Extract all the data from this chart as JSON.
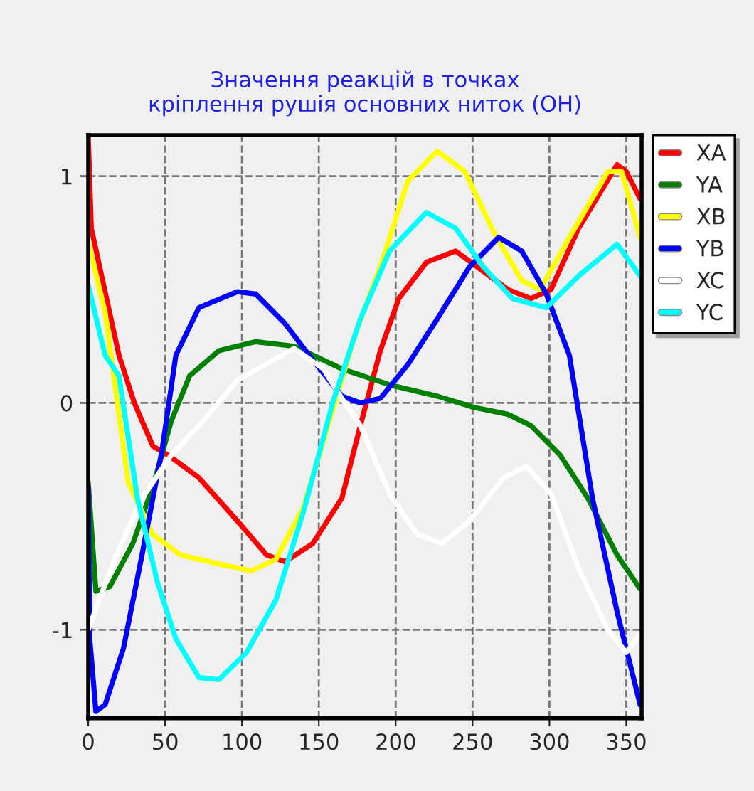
{
  "chart_data": {
    "type": "line",
    "title": "Значення реакцій в точках\nкріплення рушія основних ниток (ОН)",
    "xlim": [
      0,
      360
    ],
    "ylim": [
      -1.39,
      1.18
    ],
    "xticks": [
      0,
      50,
      100,
      150,
      200,
      250,
      300,
      350
    ],
    "yticks": [
      -1,
      0,
      1
    ],
    "grid": true,
    "legend": "top right",
    "marker": "none",
    "line_style": "solid",
    "series": [
      {
        "name": "XA",
        "color": "#ff0000",
        "x": [
          0,
          2,
          10,
          20,
          30,
          42,
          52,
          72,
          97,
          116,
          128,
          146,
          165,
          177,
          190,
          202,
          220,
          239,
          257,
          273,
          288,
          301,
          319,
          344,
          350,
          359
        ],
        "values": [
          1.18,
          0.77,
          0.52,
          0.21,
          0.0,
          -0.19,
          -0.23,
          -0.33,
          -0.52,
          -0.67,
          -0.7,
          -0.62,
          -0.42,
          -0.1,
          0.23,
          0.46,
          0.62,
          0.67,
          0.58,
          0.5,
          0.46,
          0.5,
          0.77,
          1.05,
          1.02,
          0.9
        ]
      },
      {
        "name": "YA",
        "color": "#008000",
        "x": [
          0,
          5,
          14,
          29,
          42,
          54,
          66,
          85,
          109,
          134,
          165,
          196,
          227,
          251,
          273,
          288,
          307,
          325,
          344,
          359
        ],
        "values": [
          -0.35,
          -0.83,
          -0.81,
          -0.62,
          -0.37,
          -0.08,
          0.12,
          0.23,
          0.27,
          0.25,
          0.15,
          0.08,
          0.03,
          -0.02,
          -0.05,
          -0.1,
          -0.23,
          -0.42,
          -0.67,
          -0.82
        ]
      },
      {
        "name": "XB",
        "color": "#ffff00",
        "x": [
          0,
          11,
          26,
          42,
          60,
          85,
          106,
          122,
          140,
          156,
          174,
          190,
          208,
          227,
          245,
          264,
          282,
          294,
          313,
          338,
          347,
          359
        ],
        "values": [
          0.71,
          0.4,
          -0.35,
          -0.58,
          -0.67,
          -0.71,
          -0.74,
          -0.69,
          -0.46,
          -0.1,
          0.31,
          0.6,
          0.98,
          1.11,
          1.02,
          0.75,
          0.54,
          0.5,
          0.73,
          1.02,
          1.02,
          0.73
        ]
      },
      {
        "name": "YB",
        "color": "#0000ff",
        "x": [
          0,
          1,
          5,
          11,
          23,
          35,
          48,
          57,
          72,
          97,
          109,
          128,
          146,
          165,
          177,
          190,
          208,
          227,
          248,
          267,
          282,
          298,
          313,
          328,
          344,
          359
        ],
        "values": [
          -0.37,
          -1.04,
          -1.36,
          -1.33,
          -1.08,
          -0.67,
          -0.21,
          0.21,
          0.42,
          0.49,
          0.48,
          0.35,
          0.19,
          0.03,
          0.0,
          0.02,
          0.17,
          0.37,
          0.6,
          0.73,
          0.67,
          0.48,
          0.21,
          -0.42,
          -0.92,
          -1.33
        ]
      },
      {
        "name": "XC",
        "color": "#ffffff",
        "x": [
          0,
          17,
          35,
          54,
          72,
          97,
          134,
          153,
          165,
          177,
          196,
          214,
          230,
          248,
          270,
          285,
          301,
          319,
          338,
          350,
          359
        ],
        "values": [
          -1.0,
          -0.69,
          -0.42,
          -0.23,
          -0.1,
          0.1,
          0.24,
          0.15,
          0.02,
          -0.1,
          -0.4,
          -0.58,
          -0.62,
          -0.52,
          -0.33,
          -0.28,
          -0.4,
          -0.73,
          -1.0,
          -1.1,
          -1.02
        ]
      },
      {
        "name": "YC",
        "color": "#00ffff",
        "x": [
          0,
          11,
          20,
          32,
          45,
          57,
          72,
          85,
          103,
          122,
          140,
          159,
          177,
          196,
          220,
          239,
          257,
          276,
          298,
          319,
          344,
          359
        ],
        "values": [
          0.52,
          0.21,
          0.12,
          -0.42,
          -0.79,
          -1.04,
          -1.21,
          -1.22,
          -1.1,
          -0.87,
          -0.48,
          0.0,
          0.37,
          0.67,
          0.84,
          0.77,
          0.6,
          0.46,
          0.42,
          0.56,
          0.7,
          0.56
        ]
      }
    ]
  }
}
